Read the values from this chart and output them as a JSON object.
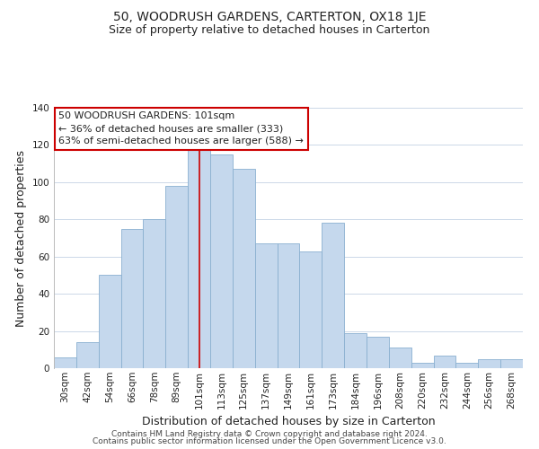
{
  "title": "50, WOODRUSH GARDENS, CARTERTON, OX18 1JE",
  "subtitle": "Size of property relative to detached houses in Carterton",
  "xlabel": "Distribution of detached houses by size in Carterton",
  "ylabel": "Number of detached properties",
  "bar_labels": [
    "30sqm",
    "42sqm",
    "54sqm",
    "66sqm",
    "78sqm",
    "89sqm",
    "101sqm",
    "113sqm",
    "125sqm",
    "137sqm",
    "149sqm",
    "161sqm",
    "173sqm",
    "184sqm",
    "196sqm",
    "208sqm",
    "220sqm",
    "232sqm",
    "244sqm",
    "256sqm",
    "268sqm"
  ],
  "bar_values": [
    6,
    14,
    50,
    75,
    80,
    98,
    118,
    115,
    107,
    67,
    67,
    63,
    78,
    19,
    17,
    11,
    3,
    7,
    3,
    5,
    5
  ],
  "highlight_index": 6,
  "bar_color": "#c5d8ed",
  "highlight_line_color": "#cc0000",
  "ylim": [
    0,
    140
  ],
  "yticks": [
    0,
    20,
    40,
    60,
    80,
    100,
    120,
    140
  ],
  "annotation_title": "50 WOODRUSH GARDENS: 101sqm",
  "annotation_line1": "← 36% of detached houses are smaller (333)",
  "annotation_line2": "63% of semi-detached houses are larger (588) →",
  "annotation_box_color": "#ffffff",
  "annotation_box_edge": "#cc0000",
  "footer1": "Contains HM Land Registry data © Crown copyright and database right 2024.",
  "footer2": "Contains public sector information licensed under the Open Government Licence v3.0.",
  "background_color": "#ffffff",
  "grid_color": "#ccd8e8",
  "title_fontsize": 10,
  "subtitle_fontsize": 9,
  "axis_label_fontsize": 9,
  "tick_fontsize": 7.5,
  "annotation_title_fontsize": 8.5,
  "annotation_text_fontsize": 8,
  "footer_fontsize": 6.5
}
